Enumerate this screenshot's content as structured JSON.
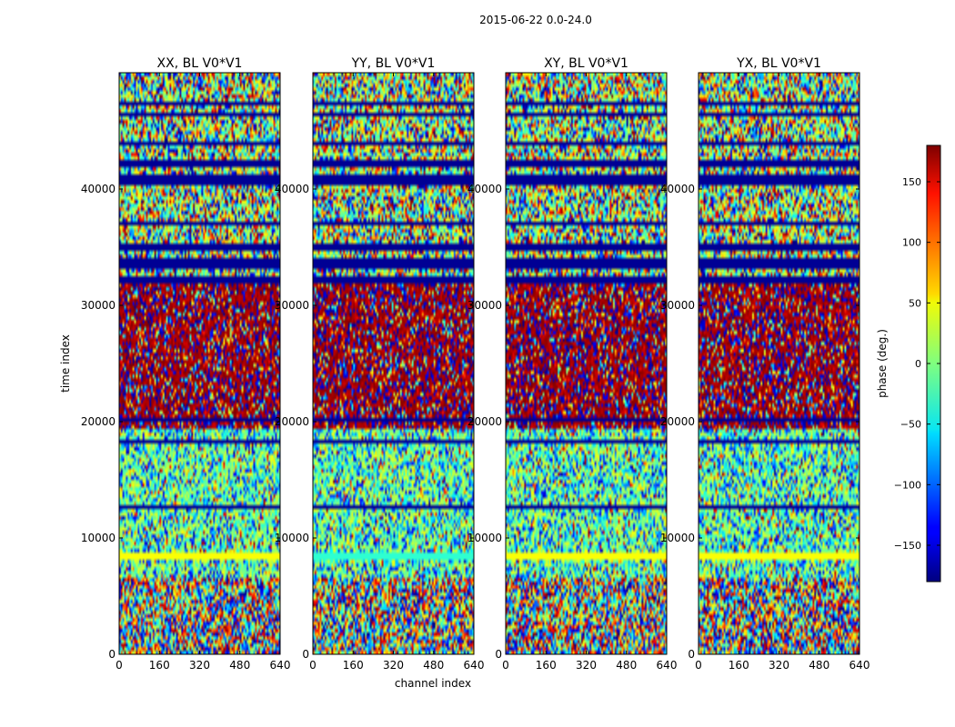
{
  "chart_data": {
    "type": "heatmap",
    "title": "2015-06-22 0.0-24.0",
    "xlabel": "channel index",
    "ylabel": "time index",
    "xlim": [
      0,
      640
    ],
    "ylim": [
      0,
      50000
    ],
    "x_ticks": [
      0,
      160,
      320,
      480,
      640
    ],
    "y_ticks": [
      0,
      10000,
      20000,
      30000,
      40000
    ],
    "panels": [
      {
        "title": "XX, BL V0*V1"
      },
      {
        "title": "YY, BL V0*V1"
      },
      {
        "title": "XY, BL V0*V1"
      },
      {
        "title": "YX, BL V0*V1"
      }
    ],
    "colorbar": {
      "label": "phase (deg.)",
      "range": [
        -180,
        180
      ],
      "ticks": [
        -150,
        -100,
        -50,
        0,
        50,
        100,
        150
      ],
      "tick_labels": [
        "−150",
        "−100",
        "−50",
        "0",
        "50",
        "100",
        "150"
      ],
      "colormap": "jet"
    },
    "regions": [
      {
        "time_range": [
          0,
          6500
        ],
        "description": "random phase noise, broadband"
      },
      {
        "time_range": [
          6500,
          19500
        ],
        "description": "mostly cyan/green near 0 deg with horizontal bands"
      },
      {
        "time_range": [
          19500,
          32000
        ],
        "description": "dominated by dark red near 180 deg with horizontal bands"
      },
      {
        "time_range": [
          32000,
          50000
        ],
        "description": "mixed phases with dark blue flagged bands"
      }
    ]
  }
}
